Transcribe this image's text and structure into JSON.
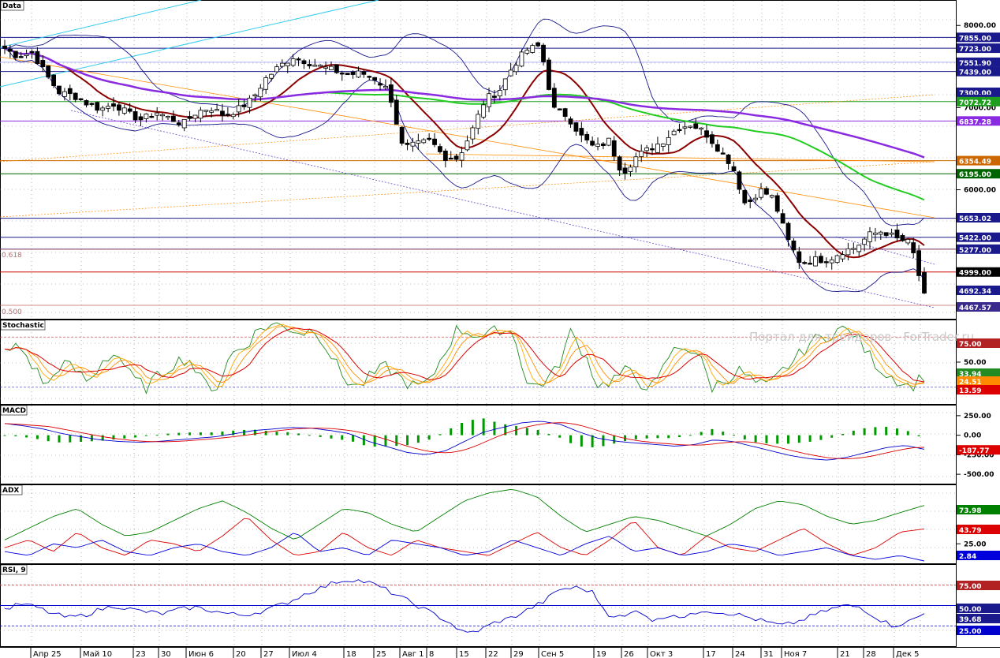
{
  "watermark": "Портал для трейдеров - ForTrader.ru",
  "colors": {
    "background": "#ffffff",
    "grid": "#808080",
    "bull": "#ffffff",
    "bear": "#000000",
    "sma_red": "#8b0000",
    "sma_green": "#22cc22",
    "sma_purple": "#8a2be2",
    "bollinger": "#1a1a8c",
    "stoch_green": "#228b22",
    "stoch_orange": "#ff8c00",
    "stoch_red": "#dd0000",
    "macd_line": "#0000cc",
    "macd_signal": "#dd0000",
    "macd_hist": "#009900",
    "adx_green": "#008000",
    "adx_red": "#dd0000",
    "adx_blue": "#0000dd",
    "rsi_line": "#0000cc"
  },
  "chart_data": [
    {
      "type": "candlestick",
      "name": "Data",
      "title": "Data",
      "ylim": [
        4430,
        8300
      ],
      "y_ticks": [
        "8000.00",
        "7000.00",
        "6000.00"
      ],
      "x_labels": [
        "Апр 25",
        "Май 10",
        "23",
        "30",
        "Июн 6",
        "20",
        "27",
        "Июл 4",
        "18",
        "25",
        "Авг 1",
        "8",
        "15",
        "22",
        "29",
        "Сен 5",
        "19",
        "26",
        "Окт 3",
        "17",
        "24",
        "31",
        "Ноя 7",
        "21",
        "28",
        "Дек 5"
      ],
      "fib_labels": [
        "0.618",
        "0.500"
      ],
      "price_tags": [
        {
          "label": "7855.00",
          "value": 7855,
          "color": "#1a1a8c"
        },
        {
          "label": "7723.00",
          "value": 7723,
          "color": "#1a1a8c"
        },
        {
          "label": "7551.90",
          "value": 7551.9,
          "color": "#1a1a8c"
        },
        {
          "label": "7439.00",
          "value": 7439,
          "color": "#1a1a8c"
        },
        {
          "label": "7300.00",
          "value": 7300,
          "color": "#1a1a8c"
        },
        {
          "label": "7217.00",
          "value": 7217,
          "color": "#1a1a8c"
        },
        {
          "label": "7072.72",
          "value": 7072.72,
          "color": "#1f9d1f"
        },
        {
          "label": "6837.28",
          "value": 6837.28,
          "color": "#8a2be2"
        },
        {
          "label": "6354.49",
          "value": 6354.49,
          "color": "#cc6600"
        },
        {
          "label": "6195.00",
          "value": 6195,
          "color": "#006400"
        },
        {
          "label": "5653.02",
          "value": 5653.02,
          "color": "#1a1a8c"
        },
        {
          "label": "5422.00",
          "value": 5422,
          "color": "#1a1a8c"
        },
        {
          "label": "5277.00",
          "value": 5277,
          "color": "#1a1a8c"
        },
        {
          "label": "4999.00",
          "value": 4999,
          "color": "#000000"
        },
        {
          "label": "4692.34",
          "value": 4692.34,
          "color": "#1a1a8c"
        },
        {
          "label": "4467.57",
          "value": 4467.57,
          "color": "#3a2a8c"
        }
      ],
      "ohlc_anchor_closes": [
        7720,
        7620,
        7680,
        7400,
        7180,
        7150,
        7050,
        6980,
        7050,
        6920,
        6850,
        6950,
        6870,
        6800,
        6950,
        7000,
        6900,
        6980,
        7100,
        7350,
        7500,
        7620,
        7560,
        7500,
        7450,
        7400,
        7420,
        7350,
        7200,
        6500,
        6550,
        6600,
        6400,
        6380,
        6700,
        7100,
        7200,
        7500,
        7700,
        7750,
        6980,
        6900,
        6650,
        6500,
        6600,
        6200,
        6400,
        6500,
        6600,
        6750,
        6800,
        6700,
        6500,
        6300,
        5800,
        6000,
        5900,
        5400,
        5100,
        5150,
        5150,
        5250,
        5300,
        5450,
        5500,
        5400,
        5350,
        4700
      ]
    },
    {
      "type": "line",
      "name": "Stochastic",
      "title": "Stochastic",
      "ylim": [
        0,
        100
      ],
      "y_ticks": [
        "50.00"
      ],
      "levels": [
        80,
        20
      ],
      "tags": [
        {
          "label": "75.00",
          "value": 75,
          "color": "#b22222"
        },
        {
          "label": "33.94",
          "value": 33.94,
          "color": "#228b22"
        },
        {
          "label": "24.51",
          "value": 24.51,
          "color": "#ff8c00"
        },
        {
          "label": "13.59",
          "value": 13.59,
          "color": "#dd0000"
        }
      ],
      "anchors": [
        60,
        70,
        45,
        20,
        50,
        40,
        25,
        55,
        60,
        30,
        20,
        35,
        50,
        55,
        25,
        20,
        60,
        70,
        90,
        95,
        92,
        85,
        90,
        60,
        30,
        20,
        35,
        45,
        30,
        20,
        25,
        60,
        90,
        85,
        80,
        90,
        85,
        20,
        25,
        40,
        85,
        60,
        20,
        30,
        40,
        25,
        20,
        60,
        70,
        60,
        20,
        30,
        40,
        25,
        20,
        40,
        55,
        75,
        80,
        90,
        85,
        60,
        40,
        30,
        20,
        34
      ]
    },
    {
      "type": "line",
      "name": "MACD",
      "title": "MACD",
      "ylim": [
        -620,
        380
      ],
      "y_ticks": [
        "250.00",
        "0.00",
        "-250.00",
        "-500.00"
      ],
      "tags": [
        {
          "label": "-187.77",
          "value": -187.77,
          "color": "#dd0000"
        }
      ],
      "anchors": [
        150,
        120,
        80,
        20,
        -20,
        -60,
        -80,
        -90,
        -80,
        -60,
        -40,
        -20,
        20,
        60,
        80,
        100,
        90,
        60,
        20,
        -80,
        -150,
        -220,
        -250,
        -200,
        -80,
        40,
        100,
        160,
        180,
        140,
        40,
        -40,
        -80,
        -100,
        -120,
        -140,
        -120,
        -60,
        -80,
        -140,
        -200,
        -260,
        -300,
        -320,
        -280,
        -220,
        -160,
        -130,
        -180
      ]
    },
    {
      "type": "line",
      "name": "ADX",
      "title": "ADX",
      "ylim": [
        0,
        100
      ],
      "y_ticks": [
        "25.00"
      ],
      "tags": [
        {
          "label": "73.98",
          "value": 73.98,
          "color": "#008000"
        },
        {
          "label": "43.79",
          "value": 43.79,
          "color": "#dd0000"
        },
        {
          "label": "2.84",
          "value": 2.84,
          "color": "#0000dd"
        }
      ],
      "series": [
        {
          "anchors": [
            30,
            45,
            60,
            70,
            50,
            35,
            40,
            55,
            70,
            80,
            65,
            45,
            30,
            50,
            70,
            65,
            50,
            40,
            60,
            80,
            90,
            95,
            85,
            60,
            40,
            50,
            60,
            55,
            45,
            35,
            50,
            70,
            80,
            75,
            60,
            50,
            55,
            65,
            74
          ]
        },
        {
          "anchors": [
            20,
            30,
            15,
            40,
            20,
            10,
            30,
            25,
            15,
            35,
            60,
            30,
            10,
            15,
            40,
            20,
            10,
            30,
            20,
            15,
            10,
            25,
            40,
            20,
            10,
            30,
            55,
            20,
            10,
            35,
            20,
            15,
            30,
            45,
            25,
            10,
            20,
            40,
            44
          ]
        },
        {
          "anchors": [
            15,
            10,
            25,
            20,
            30,
            15,
            10,
            20,
            25,
            15,
            10,
            20,
            40,
            15,
            20,
            10,
            30,
            25,
            20,
            10,
            15,
            30,
            20,
            10,
            25,
            35,
            15,
            20,
            10,
            15,
            25,
            20,
            10,
            15,
            20,
            10,
            5,
            10,
            3
          ]
        }
      ]
    },
    {
      "type": "line",
      "name": "RSI",
      "title": "RSI, 9",
      "ylim": [
        0,
        100
      ],
      "tags": [
        {
          "label": "75.00",
          "value": 75,
          "color": "#b22222"
        },
        {
          "label": "50.00",
          "value": 50,
          "color": "#1a1a8c"
        },
        {
          "label": "39.68",
          "value": 39.68,
          "color": "#1a1a8c"
        },
        {
          "label": "25.00",
          "value": 25,
          "color": "#0000cc"
        }
      ],
      "anchors": [
        45,
        52,
        48,
        40,
        35,
        38,
        45,
        50,
        45,
        42,
        40,
        45,
        48,
        44,
        40,
        38,
        42,
        48,
        55,
        65,
        72,
        80,
        82,
        78,
        70,
        60,
        50,
        40,
        30,
        15,
        20,
        30,
        35,
        45,
        55,
        70,
        72,
        68,
        40,
        35,
        45,
        30,
        40,
        35,
        45,
        42,
        40,
        35,
        30,
        25,
        30,
        38,
        45,
        50,
        48,
        35,
        25,
        30,
        40
      ]
    }
  ]
}
